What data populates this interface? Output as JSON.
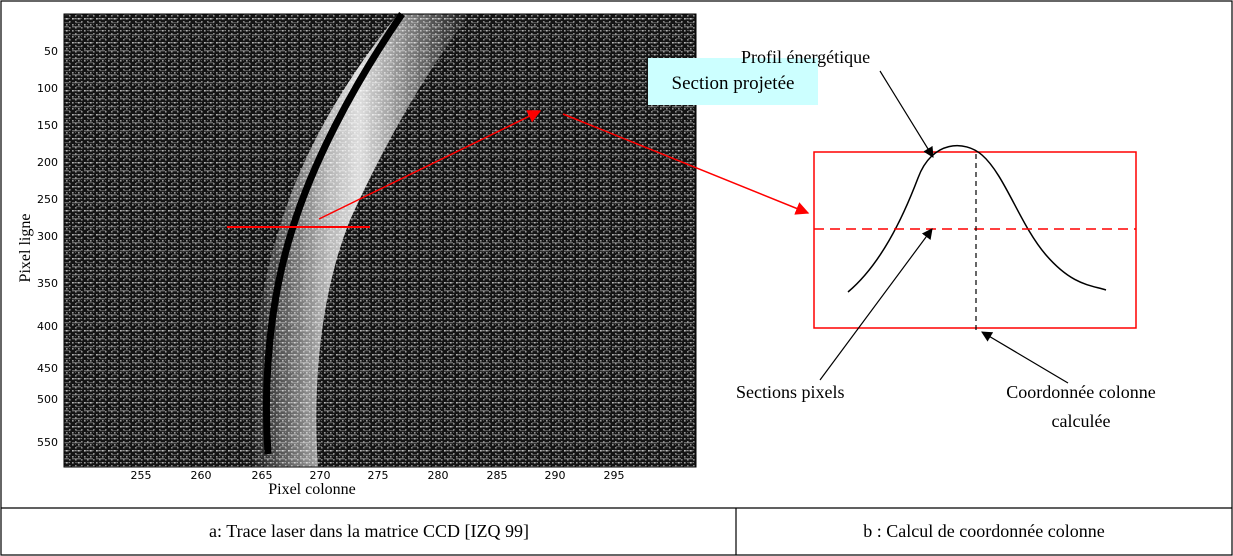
{
  "left_panel": {
    "axis_x_label": "Pixel colonne",
    "axis_y_label": "Pixel ligne",
    "x_ticks": [
      "255",
      "260",
      "265",
      "270",
      "275",
      "280",
      "285",
      "290",
      "295"
    ],
    "y_ticks": [
      "50",
      "100",
      "150",
      "200",
      "250",
      "300",
      "350",
      "400",
      "450",
      "500",
      "550"
    ],
    "callout": "Section projetée"
  },
  "right_panel": {
    "label_profile": "Profil énergétique",
    "label_sections": "Sections pixels",
    "label_coord_line1": "Coordonnée colonne",
    "label_coord_line2": "calculée"
  },
  "captions": {
    "a": "a: Trace laser dans la matrice CCD [IZQ 99]",
    "b": "b : Calcul de coordonnée colonne"
  },
  "colors": {
    "annotation": "#ff0000",
    "callout_fill": "#ccffff",
    "image_dark": "#111111"
  }
}
